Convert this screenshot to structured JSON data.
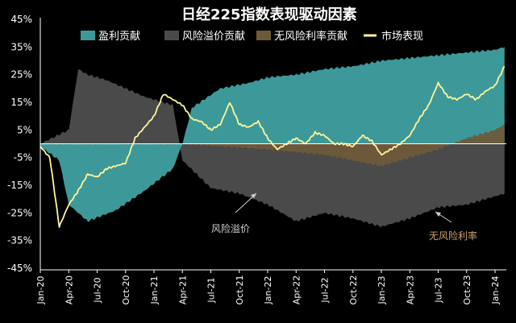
{
  "chart_data": {
    "type": "area",
    "title": "日经225指数表现驱动因素",
    "xlabel": "",
    "ylabel": "",
    "ylim": [
      -45,
      45
    ],
    "y_ticks": [
      "45%",
      "35%",
      "25%",
      "15%",
      "5%",
      "-5%",
      "-15%",
      "-25%",
      "-35%",
      "-45%"
    ],
    "x_ticks": [
      "Jan-20",
      "Apr-20",
      "Jul-20",
      "Oct-20",
      "Jan-21",
      "Apr-21",
      "Jul-21",
      "Oct-21",
      "Jan-22",
      "Apr-22",
      "Jul-22",
      "Oct-22",
      "Jan-23",
      "Apr-23",
      "Jul-23",
      "Oct-23",
      "Jan-24"
    ],
    "legend_position": "top",
    "grid": false,
    "colors": {
      "earnings": "#3d9999",
      "risk_premium": "#4a4a4a",
      "risk_free": "#6e5a3a",
      "market": "#fff59a"
    },
    "series": [
      {
        "name": "盈利贡献",
        "key": "earnings",
        "kind": "area",
        "x": [
          "Jan-20",
          "Mar-20",
          "Apr-20",
          "Jun-20",
          "Sep-20",
          "Dec-20",
          "Mar-21",
          "Apr-21",
          "May-21",
          "Aug-21",
          "Nov-21",
          "Jan-22",
          "Apr-22",
          "Jul-22",
          "Oct-22",
          "Jan-23",
          "Apr-23",
          "Jul-23",
          "Oct-23",
          "Jan-24",
          "Feb-24"
        ],
        "values": [
          -1,
          -6,
          -22,
          -28,
          -24,
          -17,
          -9,
          0,
          13,
          20,
          22,
          24,
          25,
          27,
          28,
          30,
          31,
          32,
          33,
          34,
          35
        ]
      },
      {
        "name": "风险溢价贡献",
        "key": "risk_premium",
        "kind": "area",
        "x": [
          "Jan-20",
          "Apr-20",
          "May-20",
          "Jun-20",
          "Aug-20",
          "Oct-20",
          "Dec-20",
          "Jan-21",
          "Mar-21",
          "Apr-21",
          "Jul-21",
          "Oct-21",
          "Jan-22",
          "Apr-22",
          "Jul-22",
          "Oct-22",
          "Jan-23",
          "Apr-23",
          "Jul-23",
          "Oct-23",
          "Jan-24",
          "Feb-24"
        ],
        "values": [
          0,
          5,
          27,
          25,
          23,
          20,
          17,
          16,
          14,
          -6,
          -16,
          -18,
          -22,
          -28,
          -25,
          -27,
          -30,
          -27,
          -23,
          -22,
          -19,
          -18
        ]
      },
      {
        "name": "无风险利率贡献",
        "key": "risk_free",
        "kind": "area",
        "x": [
          "Jan-20",
          "Apr-21",
          "Jan-22",
          "Jul-22",
          "Jan-23",
          "Mar-23",
          "Jul-23",
          "Oct-23",
          "Jan-24",
          "Feb-24"
        ],
        "values": [
          0,
          0,
          -2,
          -4,
          -8,
          -6,
          -2,
          2,
          5,
          7
        ]
      },
      {
        "name": "市场表现",
        "key": "market",
        "kind": "line",
        "x": [
          "Jan-20",
          "Feb-20",
          "Mar-20",
          "Apr-20",
          "May-20",
          "Jun-20",
          "Jul-20",
          "Aug-20",
          "Sep-20",
          "Oct-20",
          "Nov-20",
          "Dec-20",
          "Jan-21",
          "Feb-21",
          "Mar-21",
          "Apr-21",
          "May-21",
          "Jun-21",
          "Jul-21",
          "Aug-21",
          "Sep-21",
          "Oct-21",
          "Nov-21",
          "Dec-21",
          "Jan-22",
          "Feb-22",
          "Mar-22",
          "Apr-22",
          "May-22",
          "Jun-22",
          "Jul-22",
          "Aug-22",
          "Sep-22",
          "Oct-22",
          "Nov-22",
          "Dec-22",
          "Jan-23",
          "Feb-23",
          "Mar-23",
          "Apr-23",
          "May-23",
          "Jun-23",
          "Jul-23",
          "Aug-23",
          "Sep-23",
          "Oct-23",
          "Nov-23",
          "Dec-23",
          "Jan-24",
          "Feb-24"
        ],
        "values": [
          -1,
          -5,
          -30,
          -22,
          -17,
          -11,
          -12,
          -9,
          -8,
          -7,
          2,
          6,
          10,
          18,
          16,
          14,
          9,
          8,
          5,
          7,
          15,
          7,
          6,
          8,
          2,
          -2,
          0,
          2,
          0,
          4,
          3,
          0,
          0,
          -1,
          3,
          1,
          -4,
          -2,
          0,
          3,
          9,
          14,
          22,
          17,
          16,
          18,
          16,
          19,
          21,
          28
        ]
      }
    ],
    "legend": [
      "盈利贡献",
      "风险溢价贡献",
      "无风险利率贡献",
      "市场表现"
    ],
    "annotations": [
      {
        "text": "风险溢价",
        "key": "risk_premium"
      },
      {
        "text": "无风险利率",
        "key": "risk_free"
      }
    ]
  }
}
